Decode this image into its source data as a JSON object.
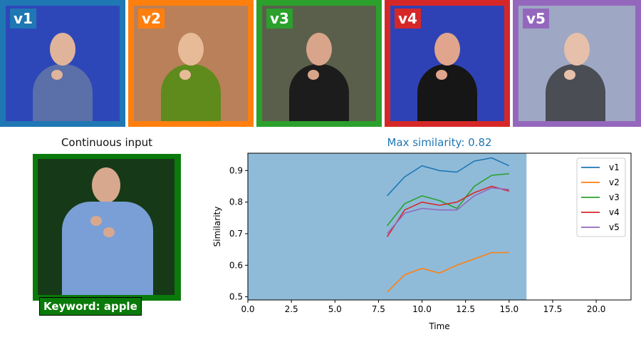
{
  "tiles": [
    {
      "label": "v1",
      "color": "#1f77b4",
      "bg": "#2e47b8",
      "shirt": "#5b6fa8",
      "skin": "#e0b49a"
    },
    {
      "label": "v2",
      "color": "#ff7f0e",
      "bg": "#b9805a",
      "shirt": "#5f8a1c",
      "skin": "#e7bb98"
    },
    {
      "label": "v3",
      "color": "#2ca02c",
      "bg": "#5a5f4c",
      "shirt": "#1d1c1c",
      "skin": "#d9a58a"
    },
    {
      "label": "v4",
      "color": "#d62728",
      "bg": "#2f42b5",
      "shirt": "#161616",
      "skin": "#e0a58c"
    },
    {
      "label": "v5",
      "color": "#9467bd",
      "bg": "#9ea7c4",
      "shirt": "#4a4d54",
      "skin": "#e6c0aa"
    }
  ],
  "input": {
    "title": "Continuous input",
    "keyword": "Keyword: apple",
    "frame_color": "#0a7a0a"
  },
  "chart_data": {
    "type": "line",
    "title": "Max similarity: 0.82",
    "title_color": "#1f77b4",
    "xlabel": "Time",
    "ylabel": "Similarity",
    "xlim": [
      0,
      22
    ],
    "ylim": [
      0.49,
      0.955
    ],
    "xticks": [
      0.0,
      2.5,
      5.0,
      7.5,
      10.0,
      12.5,
      15.0,
      17.5,
      20.0
    ],
    "xtick_labels": [
      "0.0",
      "2.5",
      "5.0",
      "7.5",
      "10.0",
      "12.5",
      "15.0",
      "17.5",
      "20.0"
    ],
    "yticks": [
      0.5,
      0.6,
      0.7,
      0.8,
      0.9
    ],
    "ytick_labels": [
      "0.5",
      "0.6",
      "0.7",
      "0.8",
      "0.9"
    ],
    "shaded_region": {
      "x_range": [
        0,
        16
      ],
      "color": "#8fbbd9"
    },
    "grid": false,
    "legend_position": "top-right",
    "x": [
      8,
      9,
      10,
      11,
      12,
      13,
      14,
      15
    ],
    "series": [
      {
        "name": "v1",
        "color": "#1f77b4",
        "values": [
          0.82,
          0.88,
          0.915,
          0.9,
          0.895,
          0.93,
          0.94,
          0.915
        ]
      },
      {
        "name": "v2",
        "color": "#ff7f0e",
        "values": [
          0.515,
          0.57,
          0.59,
          0.575,
          0.6,
          0.62,
          0.64,
          0.64
        ]
      },
      {
        "name": "v3",
        "color": "#2ca02c",
        "values": [
          0.725,
          0.795,
          0.82,
          0.805,
          0.78,
          0.85,
          0.885,
          0.89
        ]
      },
      {
        "name": "v4",
        "color": "#d62728",
        "values": [
          0.69,
          0.775,
          0.8,
          0.79,
          0.8,
          0.83,
          0.85,
          0.835
        ]
      },
      {
        "name": "v5",
        "color": "#9467bd",
        "values": [
          0.7,
          0.765,
          0.78,
          0.775,
          0.775,
          0.82,
          0.845,
          0.84
        ]
      }
    ]
  }
}
